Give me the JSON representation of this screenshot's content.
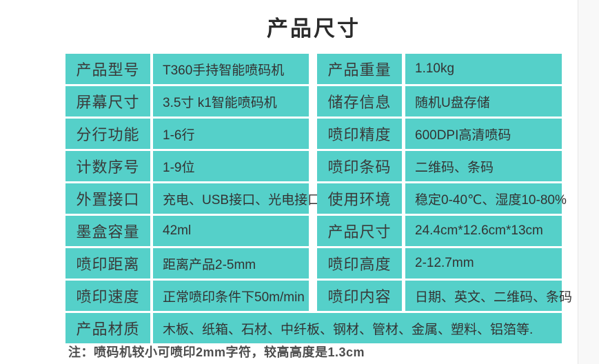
{
  "page": {
    "title": "产品尺寸",
    "note": "注：喷码机较小可喷印2mm字符，较高高度是1.3cm"
  },
  "colors": {
    "cell_background": "#55d0c9",
    "title_text": "#2b2b2b",
    "cell_text": "#3a3a3a",
    "edge_strip": "#f8f8f8"
  },
  "table": {
    "rows": [
      [
        {
          "label": "产品型号",
          "value": "T360手持智能喷码机"
        },
        {
          "label": "产品重量",
          "value": "1.10kg"
        }
      ],
      [
        {
          "label": "屏幕尺寸",
          "value": "3.5寸   k1智能喷码机"
        },
        {
          "label": "储存信息",
          "value": "随机U盘存储"
        }
      ],
      [
        {
          "label": "分行功能",
          "value": "1-6行"
        },
        {
          "label": "喷印精度",
          "value": "600DPI高清喷码"
        }
      ],
      [
        {
          "label": "计数序号",
          "value": "1-9位"
        },
        {
          "label": "喷印条码",
          "value": "二维码、条码"
        }
      ],
      [
        {
          "label": "外置接口",
          "value": "充电、USB接口、光电接口"
        },
        {
          "label": "使用环境",
          "value": "稳定0-40℃、湿度10-80%"
        }
      ],
      [
        {
          "label": "墨盒容量",
          "value": "42ml"
        },
        {
          "label": "产品尺寸",
          "value": "24.4cm*12.6cm*13cm"
        }
      ],
      [
        {
          "label": "喷印距离",
          "value": "距离产品2-5mm"
        },
        {
          "label": "喷印高度",
          "value": "2-12.7mm"
        }
      ],
      [
        {
          "label": "喷印速度",
          "value": "正常喷印条件下50m/min"
        },
        {
          "label": "喷印内容",
          "value": "日期、英文、二维码、条码"
        }
      ]
    ],
    "material_row": {
      "label": "产品材质",
      "value": "木板、纸箱、石材、中纤板、钢材、管材、金属、塑料、铝箔等."
    }
  }
}
